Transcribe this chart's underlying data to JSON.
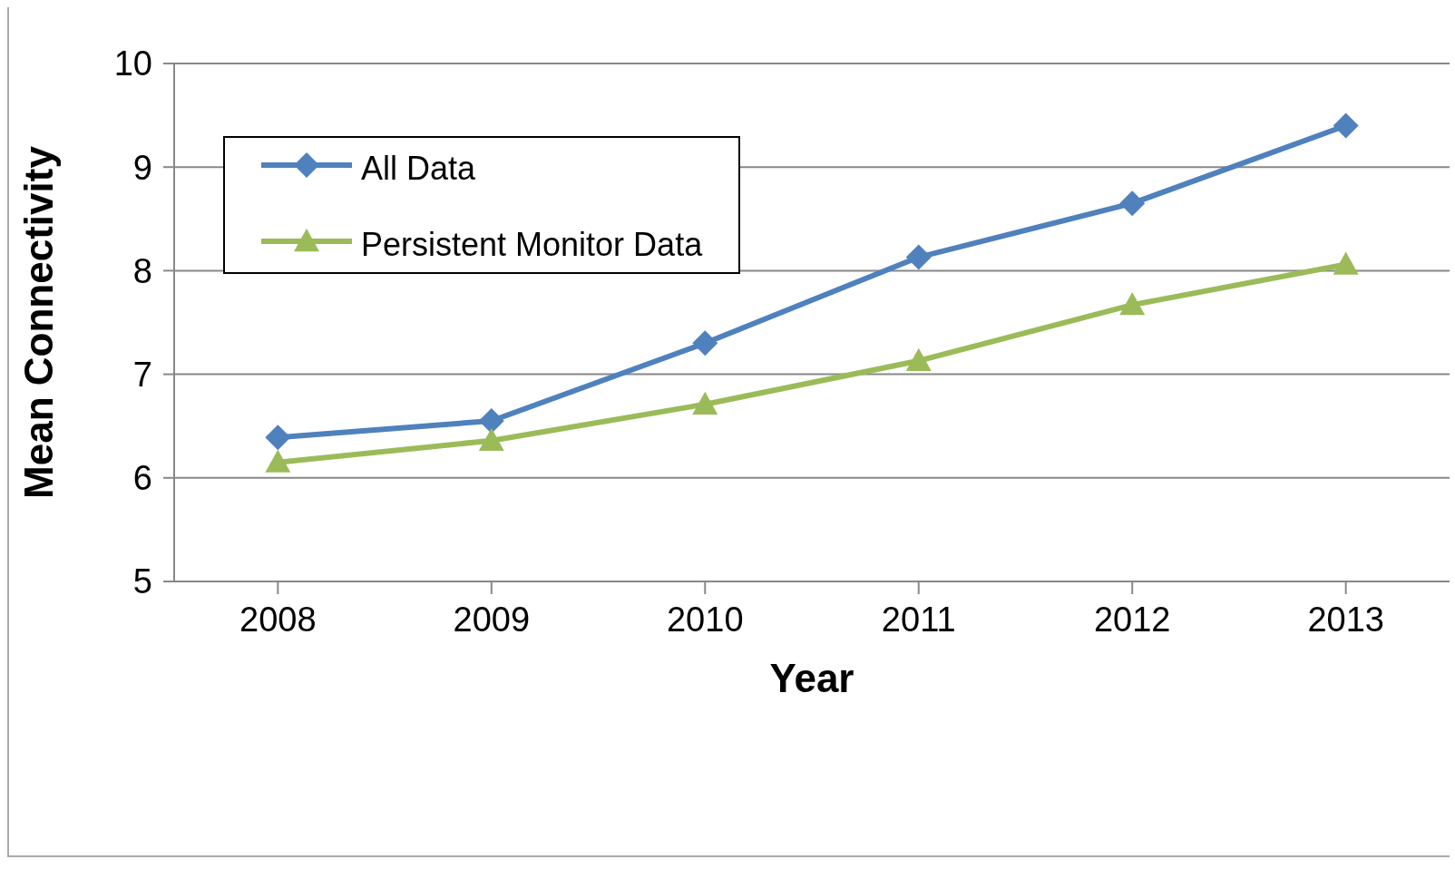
{
  "chart_data": {
    "type": "line",
    "xlabel": "Year",
    "ylabel": "Mean Connectivity",
    "categories": [
      "2008",
      "2009",
      "2010",
      "2011",
      "2012",
      "2013"
    ],
    "series": [
      {
        "name": "All Data",
        "color": "#4f81bd",
        "marker": "diamond",
        "values": [
          6.39,
          6.55,
          7.3,
          8.13,
          8.65,
          9.4
        ]
      },
      {
        "name": "Persistent Monitor Data",
        "color": "#9bbb59",
        "marker": "triangle",
        "values": [
          6.15,
          6.36,
          6.71,
          7.13,
          7.67,
          8.06
        ]
      }
    ],
    "ylim": [
      5,
      10
    ],
    "yticks": [
      5,
      6,
      7,
      8,
      9,
      10
    ],
    "grid": "y",
    "legend": "top left"
  }
}
